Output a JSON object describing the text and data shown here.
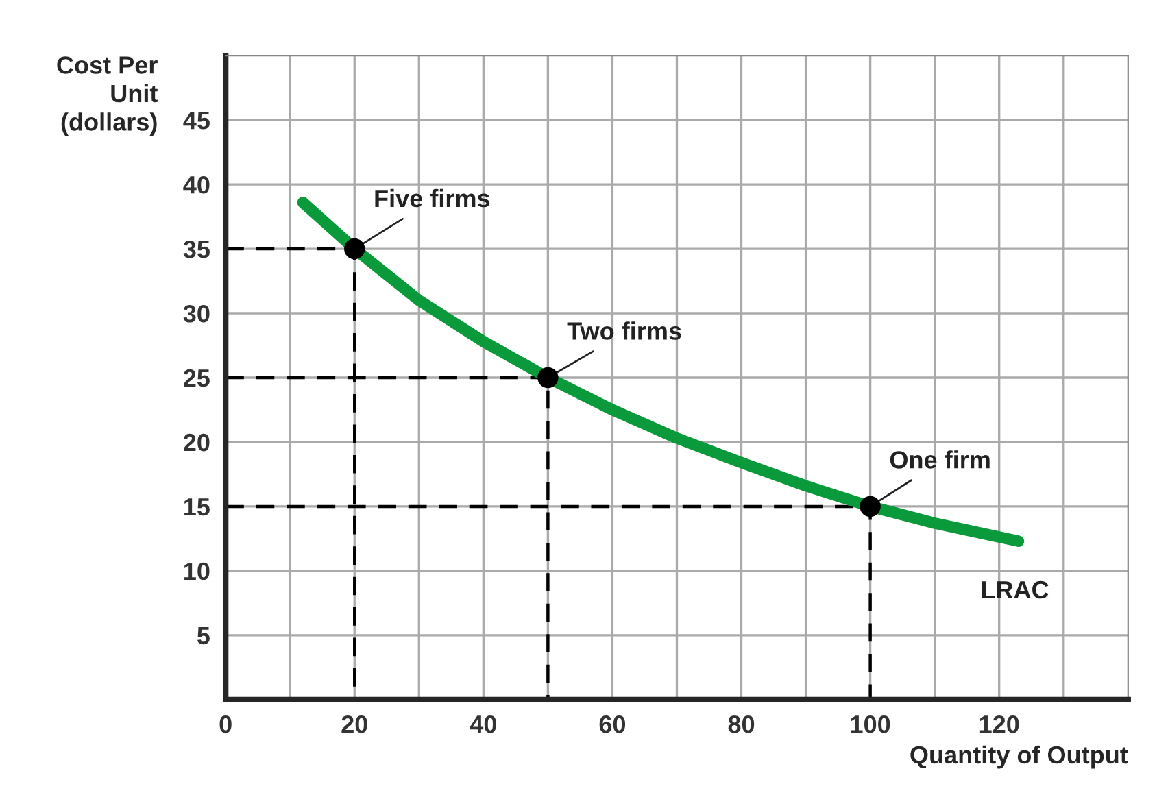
{
  "chart_data": {
    "type": "line",
    "xlabel": "Quantity of Output",
    "ylabel": "Cost Per Unit (dollars)",
    "xlim": [
      0,
      140
    ],
    "ylim": [
      0,
      50
    ],
    "xticks": [
      0,
      {
        "value": 10,
        "label": null
      },
      20,
      {
        "value": 30,
        "label": null
      },
      40,
      {
        "value": 50,
        "label": null
      },
      60,
      {
        "value": 70,
        "label": null
      },
      80,
      {
        "value": 90,
        "label": null
      },
      100,
      {
        "value": 110,
        "label": null
      },
      120,
      {
        "value": 130,
        "label": null
      }
    ],
    "yticks": [
      5,
      10,
      15,
      20,
      25,
      30,
      35,
      40,
      45
    ],
    "grid": true,
    "series": [
      {
        "x": [
          12,
          20,
          30,
          40,
          50,
          60,
          70,
          80,
          90,
          100,
          110,
          123
        ],
        "values": [
          38.6,
          35,
          31,
          27.8,
          25,
          22.5,
          20.3,
          18.4,
          16.6,
          15,
          13.7,
          12.3
        ],
        "color": "#0a9a3c",
        "line_style": "solid",
        "marker": "none"
      },
      {
        "x": [
          0,
          20,
          20
        ],
        "values": [
          35,
          35,
          0
        ],
        "color": "#000000",
        "line_style": "dashed",
        "marker": "none"
      },
      {
        "x": [
          0,
          50,
          50
        ],
        "values": [
          25,
          25,
          0
        ],
        "color": "#000000",
        "line_style": "dashed",
        "marker": "none"
      },
      {
        "x": [
          0,
          100,
          100
        ],
        "values": [
          15,
          15,
          0
        ],
        "color": "#000000",
        "line_style": "dashed",
        "marker": "none"
      },
      {
        "type": "scatter",
        "x": [
          20,
          50,
          100
        ],
        "values": [
          35,
          25,
          15
        ],
        "color": "#000000",
        "marker": "circle"
      }
    ],
    "annotations": [
      {
        "text": "Five firms",
        "x": 20,
        "y": 35
      },
      {
        "text": "Two firms",
        "x": 50,
        "y": 25
      },
      {
        "text": "One firm",
        "x": 100,
        "y": 15
      },
      {
        "text": "LRAC",
        "x": 123,
        "y": 12.3
      }
    ]
  }
}
